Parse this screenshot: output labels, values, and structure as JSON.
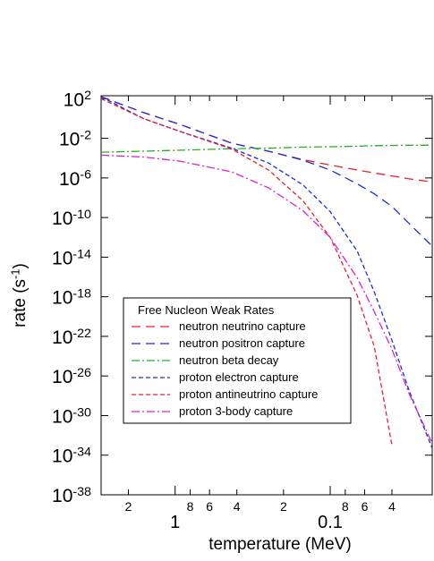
{
  "chart_data": {
    "type": "line",
    "xlabel": "temperature (MeV)",
    "ylabel": "rate (s^-1)",
    "xlog": true,
    "ylog": true,
    "xlim": [
      3,
      0.022
    ],
    "ylim": [
      1e-38,
      200
    ],
    "xticks": [
      2,
      1,
      {
        "value": 0.8,
        "label": "8"
      },
      {
        "value": 0.6,
        "label": "6"
      },
      {
        "value": 0.4,
        "label": "4"
      },
      {
        "value": 0.2,
        "label": "2"
      },
      0.1,
      {
        "value": 0.08,
        "label": "8"
      },
      {
        "value": 0.06,
        "label": "6"
      },
      {
        "value": 0.04,
        "label": "4"
      }
    ],
    "yticks": [
      {
        "value": 100,
        "label": "10^2"
      },
      {
        "value": 0.01,
        "label": "10^-2"
      },
      {
        "value": 1e-06,
        "label": "10^-6"
      },
      {
        "value": 1e-10,
        "label": "10^-10"
      },
      {
        "value": 1e-14,
        "label": "10^-14"
      },
      {
        "value": 1e-18,
        "label": "10^-18"
      },
      {
        "value": 1e-22,
        "label": "10^-22"
      },
      {
        "value": 1e-26,
        "label": "10^-26"
      },
      {
        "value": 1e-30,
        "label": "10^-30"
      },
      {
        "value": 1e-34,
        "label": "10^-34"
      },
      {
        "value": 1e-38,
        "label": "10^-38"
      }
    ],
    "legend_title": "Free Nucleon Weak Rates",
    "legend": "lower-left",
    "x": [
      3,
      1.6,
      0.93,
      0.43,
      0.25,
      0.15,
      0.1,
      0.067,
      0.052,
      0.04,
      0.031,
      0.022
    ],
    "series": [
      {
        "name": "neutron neutrino capture",
        "color": "#e8202a",
        "dash": "long",
        "values": [
          160,
          4,
          0.25,
          0.0032,
          0.0005,
          7e-05,
          2e-05,
          6.3e-06,
          3.2e-06,
          1.6e-06,
          8e-07,
          4e-07
        ]
      },
      {
        "name": "neutron positron capture",
        "color": "#1a2fd6",
        "dash": "long",
        "values": [
          160,
          4,
          0.25,
          0.0032,
          0.0005,
          6.3e-05,
          6.3e-06,
          2.5e-07,
          2.5e-08,
          1.3e-09,
          2.5e-11,
          1.3e-13
        ]
      },
      {
        "name": "neutron beta decay",
        "color": "#22b022",
        "dash": "dashdot",
        "values": [
          0.0004,
          0.0005,
          0.00063,
          0.0009,
          0.001,
          0.0013,
          0.0014,
          0.0016,
          0.0018,
          0.0019,
          0.002,
          0.002
        ]
      },
      {
        "name": "proton electron capture",
        "color": "#1a2fd6",
        "dash": "short",
        "values": [
          160,
          1,
          0.05,
          0.001,
          3.2e-05,
          2e-07,
          4e-10,
          4e-14,
          3.2e-18,
          4e-23,
          3.2e-28,
          5e-34
        ]
      },
      {
        "name": "proton antineutrino capture",
        "color": "#e8202a",
        "dash": "short",
        "values": [
          100,
          1,
          0.05,
          0.0008,
          6.3e-06,
          5e-09,
          1e-12,
          1.3e-18,
          1e-23,
          1e-33,
          null,
          null
        ]
      },
      {
        "name": "proton 3-body capture",
        "color": "#e020d0",
        "dash": "dashdot",
        "values": [
          0.0002,
          0.00013,
          5e-05,
          4e-06,
          1e-07,
          5e-10,
          1e-12,
          8e-17,
          3.2e-20,
          5e-24,
          1.6e-28,
          1.6e-33
        ]
      }
    ]
  }
}
